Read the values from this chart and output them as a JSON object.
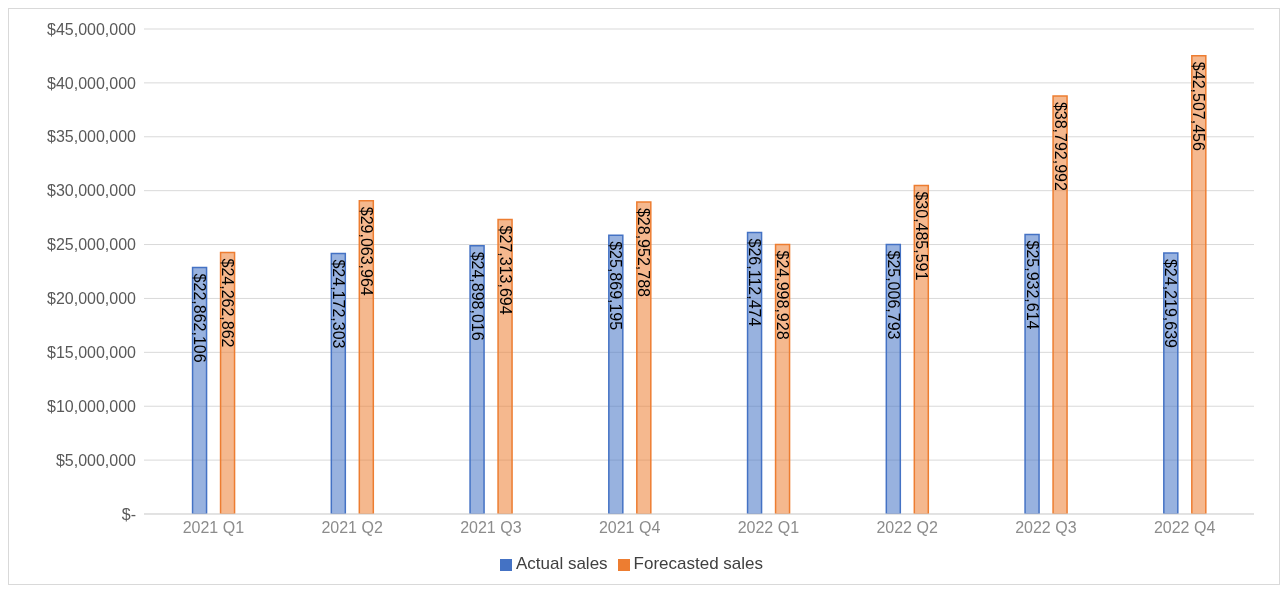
{
  "chart_data": {
    "type": "bar",
    "categories": [
      "2021 Q1",
      "2021 Q2",
      "2021 Q3",
      "2021 Q4",
      "2022 Q1",
      "2022 Q2",
      "2022 Q3",
      "2022 Q4"
    ],
    "series": [
      {
        "name": "Actual sales",
        "color": "#4472c4",
        "values": [
          22862106,
          24172303,
          24898016,
          25869195,
          26112474,
          25006793,
          25932614,
          24219639
        ],
        "value_labels": [
          "$22,862,106",
          "$24,172,303",
          "$24,898,016",
          "$25,869,195",
          "$26,112,474",
          "$25,006,793",
          "$25,932,614",
          "$24,219,639"
        ]
      },
      {
        "name": "Forecasted sales",
        "color": "#ed7d31",
        "values": [
          24262862,
          29063964,
          27313694,
          28952788,
          24998928,
          30485591,
          38792992,
          42507456
        ],
        "value_labels": [
          "$24,262,862",
          "$29,063,964",
          "$27,313,694",
          "$28,952,788",
          "$24,998,928",
          "$30,485,591",
          "$38,792,992",
          "$42,507,456"
        ]
      }
    ],
    "ylim": [
      0,
      45000000
    ],
    "yticks": [
      {
        "value": 0,
        "label": "$-"
      },
      {
        "value": 5000000,
        "label": "$5,000,000"
      },
      {
        "value": 10000000,
        "label": "$10,000,000"
      },
      {
        "value": 15000000,
        "label": "$15,000,000"
      },
      {
        "value": 20000000,
        "label": "$20,000,000"
      },
      {
        "value": 25000000,
        "label": "$25,000,000"
      },
      {
        "value": 30000000,
        "label": "$30,000,000"
      },
      {
        "value": 35000000,
        "label": "$35,000,000"
      },
      {
        "value": 40000000,
        "label": "$40,000,000"
      },
      {
        "value": 45000000,
        "label": "$45,000,000"
      }
    ],
    "grid": "y",
    "legend": "bottom"
  }
}
